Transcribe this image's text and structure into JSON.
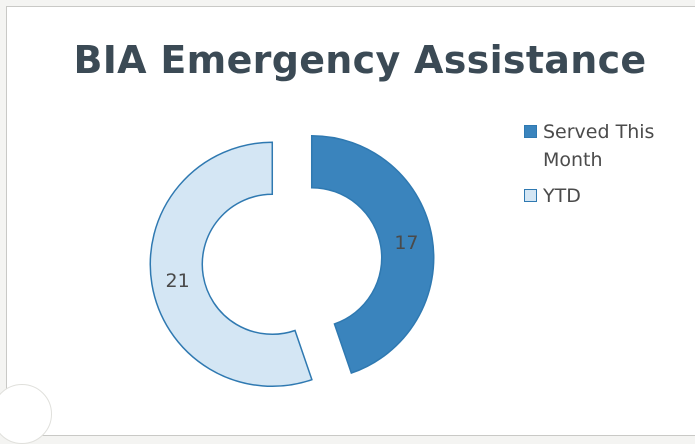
{
  "chart_data": {
    "type": "pie",
    "subtype": "doughnut",
    "title": "BIA Emergency Assistance",
    "categories": [
      "Served This Month",
      "YTD"
    ],
    "values": [
      17,
      21
    ],
    "colors": [
      "#3a84bd",
      "#d4e6f4"
    ],
    "border_color": "#2f79b1",
    "data_labels": [
      "17",
      "21"
    ],
    "legend_position": "right"
  }
}
